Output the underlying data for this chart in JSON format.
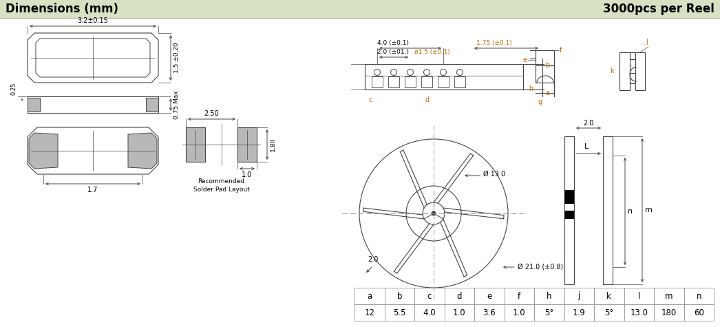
{
  "title_left": "Dimensions (mm)",
  "title_right": "3000pcs per Reel",
  "header_bg": "#d9e1c4",
  "table_headers": [
    "a",
    "b",
    "c",
    "d",
    "e",
    "f",
    "h",
    "j",
    "k",
    "l",
    "m",
    "n"
  ],
  "table_values": [
    "12",
    "5.5",
    "4.0",
    "1.0",
    "3.6",
    "1.0",
    "5°",
    "1.9",
    "5°",
    "13.0",
    "180",
    "60"
  ],
  "dim_top_width_label": "3.2±0.15",
  "dim_side_height_label": "1.5 ±0.20",
  "dim_side_small_label": "0.25",
  "dim_height_max_label": "0.75 Max",
  "dim_bottom_width_label": "1.7",
  "pad_width_label": "2.50",
  "pad_height_label": "1.8ll",
  "pad_pad_label": "1.0",
  "pad_text": "Recommended\nSolder Pad Layout",
  "reel_dim_4": "4.0 (±0.1)",
  "reel_dim_2": "2.0 (±01.)",
  "reel_dim_15": "ø1.5 (±0.1)",
  "reel_dim_175": "1.75 (±0.1)",
  "reel_label_a": "a",
  "reel_label_b": "b",
  "reel_label_c": "c",
  "reel_label_d": "d",
  "reel_label_e": "e",
  "reel_label_f": "f",
  "reel_label_g": "g",
  "reel_label_h": "h",
  "reel_label_j": "j",
  "reel_label_k": "k",
  "reel_circle_d13": "Ø 13.0",
  "reel_circle_d21": "Ø 21.0 (±0.8)",
  "reel_dim_20a": "2.0",
  "reel_dim_20b": "2.0",
  "reel_side_L": "L",
  "reel_side_n": "n",
  "reel_side_m": "m",
  "reel_side_20": "2.0",
  "line_color": "#444444",
  "gray_fill": "#b8b8b8",
  "orange_color": "#cc6600"
}
